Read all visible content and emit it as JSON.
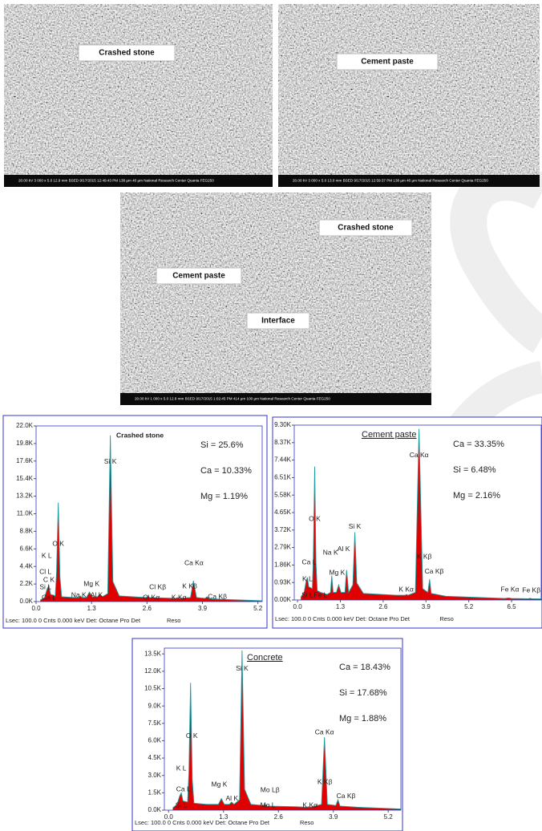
{
  "images": [
    {
      "labels": [
        "Crashed stone"
      ],
      "info": "20.00 kV  3 000 x  5.0  12.9 mm  BSED  9/17/2015 12:49:43 PM  138 µm  40 µm  National Research Center Quanta FEG250"
    },
    {
      "labels": [
        "Cement paste"
      ],
      "info": "20.00 kV  3 000 x  5.0  13.0 mm  BSED  9/17/2015 12:59:37 PM  138 µm  40 µm  National Research Center Quanta FEG250"
    },
    {
      "labels": [
        "Crashed stone",
        "Cement paste",
        "Interface"
      ],
      "info": "20.00 kV  1 000 x  5.0  12.8 mm  BSED  9/17/2015 1:02:45 PM  414 µm  100 µm  National Research Center Quanta FEG250"
    }
  ],
  "chart_data": [
    {
      "type": "area",
      "title": "Crashed stone",
      "color": "#e00000",
      "line_color": "#1f9aa0",
      "x": [
        0.1,
        0.2,
        0.26,
        0.3,
        0.34,
        0.45,
        0.48,
        0.52,
        0.56,
        0.6,
        0.9,
        1.0,
        1.04,
        1.08,
        1.18,
        1.25,
        1.32,
        1.44,
        1.49,
        1.55,
        1.68,
        1.74,
        1.8,
        1.95,
        2.58,
        2.62,
        2.66,
        3.0,
        3.27,
        3.31,
        3.35,
        3.62,
        3.69,
        3.76,
        3.96,
        4.01,
        4.06,
        4.5,
        5.3
      ],
      "values": [
        200,
        500,
        1600,
        2000,
        900,
        700,
        3500,
        12400,
        3000,
        600,
        500,
        500,
        700,
        500,
        500,
        1200,
        600,
        600,
        900,
        600,
        1000,
        20800,
        2500,
        700,
        500,
        700,
        500,
        450,
        400,
        500,
        400,
        500,
        2600,
        500,
        400,
        600,
        350,
        250,
        100
      ],
      "xlim": [
        0,
        5.3
      ],
      "xticks": [
        {
          "value": 0,
          "label": "0.0"
        },
        1.3,
        2.6,
        3.9,
        5.2
      ],
      "ylim": [
        0,
        22000
      ],
      "yticks": [
        {
          "value": 0,
          "label": "0.0K"
        },
        {
          "value": 2200,
          "label": "2.2K"
        },
        {
          "value": 4400,
          "label": "4.4K"
        },
        {
          "value": 6600,
          "label": "6.6K"
        },
        {
          "value": 8800,
          "label": "8.8K"
        },
        {
          "value": 11000,
          "label": "11.0K"
        },
        {
          "value": 13200,
          "label": "13.2K"
        },
        {
          "value": 15400,
          "label": "15.4K"
        },
        {
          "value": 17600,
          "label": "17.6K"
        },
        {
          "value": 19800,
          "label": "19.8K"
        },
        {
          "value": 22000,
          "label": "22.0K"
        }
      ],
      "annotations": [
        {
          "text": "Si K",
          "x": 1.74,
          "y": 17500
        },
        {
          "text": "O K",
          "x": 0.52,
          "y": 7200
        },
        {
          "text": "K L",
          "x": 0.25,
          "y": 5700
        },
        {
          "text": "Cl L",
          "x": 0.22,
          "y": 3700
        },
        {
          "text": "C K",
          "x": 0.3,
          "y": 2700
        },
        {
          "text": "Si L",
          "x": 0.22,
          "y": 1800
        },
        {
          "text": "Ca L",
          "x": 0.3,
          "y": 500
        },
        {
          "text": "Na K",
          "x": 1.0,
          "y": 800
        },
        {
          "text": "Al K",
          "x": 1.42,
          "y": 800
        },
        {
          "text": "Mg K",
          "x": 1.3,
          "y": 2200
        },
        {
          "text": "Cl Kβ",
          "x": 2.85,
          "y": 1800
        },
        {
          "text": "Cl Kα",
          "x": 2.7,
          "y": 500
        },
        {
          "text": "K Kα",
          "x": 3.35,
          "y": 500
        },
        {
          "text": "Ca Kα",
          "x": 3.7,
          "y": 4800
        },
        {
          "text": "K Kβ",
          "x": 3.6,
          "y": 1900
        },
        {
          "text": "Ca Kβ",
          "x": 4.25,
          "y": 600
        }
      ],
      "composition": [
        "Si = 25.6%",
        "Ca = 10.33%",
        "Mg = 1.19%"
      ],
      "footer": [
        "Lsec: 100.0 0 Cnts  0.000 keV Det: Octane Pro Det",
        "Reso"
      ]
    },
    {
      "type": "area",
      "title": "Cement paste",
      "color": "#e00000",
      "line_color": "#1f9aa0",
      "x": [
        0.1,
        0.2,
        0.26,
        0.3,
        0.34,
        0.45,
        0.48,
        0.52,
        0.56,
        0.6,
        0.7,
        0.9,
        1.0,
        1.04,
        1.08,
        1.18,
        1.25,
        1.32,
        1.44,
        1.49,
        1.55,
        1.68,
        1.74,
        1.8,
        2.0,
        3.0,
        3.27,
        3.31,
        3.35,
        3.58,
        3.69,
        3.8,
        3.96,
        4.01,
        4.06,
        4.5,
        6.3,
        6.4,
        6.5,
        7.0,
        7.06,
        7.12,
        7.4
      ],
      "values": [
        150,
        400,
        1000,
        1200,
        700,
        600,
        2200,
        7100,
        2000,
        500,
        400,
        300,
        400,
        1300,
        400,
        400,
        800,
        400,
        400,
        1600,
        400,
        800,
        3600,
        900,
        350,
        250,
        250,
        300,
        250,
        400,
        9100,
        600,
        400,
        1100,
        350,
        200,
        80,
        110,
        80,
        70,
        90,
        70,
        60
      ],
      "xlim": [
        -0.1,
        7.4
      ],
      "xticks": [
        {
          "value": 0,
          "label": "0.0"
        },
        1.3,
        2.6,
        3.9,
        5.2,
        6.5
      ],
      "ylim": [
        0,
        9300
      ],
      "yticks": [
        {
          "value": 0,
          "label": "0.00K"
        },
        {
          "value": 930,
          "label": "0.93K"
        },
        {
          "value": 1860,
          "label": "1.86K"
        },
        {
          "value": 2790,
          "label": "2.79K"
        },
        {
          "value": 3720,
          "label": "3.72K"
        },
        {
          "value": 4650,
          "label": "4.65K"
        },
        {
          "value": 5580,
          "label": "5.58K"
        },
        {
          "value": 6510,
          "label": "6.51K"
        },
        {
          "value": 7440,
          "label": "7.44K"
        },
        {
          "value": 8370,
          "label": "8.37K"
        },
        {
          "value": 9300,
          "label": "9.30K"
        }
      ],
      "annotations": [
        {
          "text": "Ca Kα",
          "x": 3.69,
          "y": 7700
        },
        {
          "text": "O K",
          "x": 0.52,
          "y": 4300
        },
        {
          "text": "Ca L",
          "x": 0.35,
          "y": 2000
        },
        {
          "text": "K L",
          "x": 0.3,
          "y": 1100
        },
        {
          "text": "Si L",
          "x": 0.3,
          "y": 250
        },
        {
          "text": "Fe L",
          "x": 0.7,
          "y": 250
        },
        {
          "text": "Na K",
          "x": 1.0,
          "y": 2500
        },
        {
          "text": "Al K",
          "x": 1.4,
          "y": 2700
        },
        {
          "text": "Mg K",
          "x": 1.2,
          "y": 1450
        },
        {
          "text": "Si K",
          "x": 1.74,
          "y": 3900
        },
        {
          "text": "K Kα",
          "x": 3.3,
          "y": 550
        },
        {
          "text": "K Kβ",
          "x": 3.85,
          "y": 2300
        },
        {
          "text": "Ca Kβ",
          "x": 4.15,
          "y": 1500
        },
        {
          "text": "Fe Kα",
          "x": 6.45,
          "y": 550
        },
        {
          "text": "Fe Kβ",
          "x": 7.1,
          "y": 500
        }
      ],
      "composition": [
        "Ca = 33.35%",
        "Si = 6.48%",
        "Mg = 2.16%"
      ],
      "footer": [
        "Lsec: 100.0 0 Cnts  0.000 keV Det: Octane Pro Det",
        "Reso"
      ]
    },
    {
      "type": "area",
      "title": "Concrete",
      "color": "#e00000",
      "line_color": "#1f9aa0",
      "x": [
        0.1,
        0.2,
        0.26,
        0.3,
        0.34,
        0.45,
        0.48,
        0.52,
        0.56,
        0.6,
        0.9,
        1.18,
        1.25,
        1.32,
        1.44,
        1.49,
        1.55,
        1.68,
        1.74,
        1.8,
        1.95,
        2.25,
        2.29,
        2.33,
        3.0,
        3.27,
        3.31,
        3.35,
        3.62,
        3.69,
        3.76,
        3.96,
        4.01,
        4.06,
        4.5,
        5.5
      ],
      "values": [
        200,
        500,
        1200,
        1500,
        800,
        700,
        3200,
        11000,
        2600,
        600,
        500,
        500,
        1000,
        500,
        500,
        700,
        500,
        900,
        13800,
        1800,
        500,
        400,
        500,
        350,
        300,
        250,
        300,
        250,
        500,
        6300,
        500,
        400,
        900,
        350,
        250,
        100
      ],
      "xlim": [
        -0.1,
        5.5
      ],
      "xticks": [
        {
          "value": 0,
          "label": "0.0"
        },
        1.3,
        2.6,
        3.9,
        5.2
      ],
      "ylim": [
        0,
        14000
      ],
      "yticks": [
        {
          "value": 0,
          "label": "0.0K"
        },
        {
          "value": 1500,
          "label": "1.5K"
        },
        {
          "value": 3000,
          "label": "3.0K"
        },
        {
          "value": 4500,
          "label": "4.5K"
        },
        {
          "value": 6000,
          "label": "6.0K"
        },
        {
          "value": 7500,
          "label": "7.5K"
        },
        {
          "value": 9000,
          "label": "9.0K"
        },
        {
          "value": 10500,
          "label": "10.5K"
        },
        {
          "value": 12000,
          "label": "12.0K"
        },
        {
          "value": 13500,
          "label": "13.5K"
        }
      ],
      "annotations": [
        {
          "text": "Si K",
          "x": 1.74,
          "y": 12200
        },
        {
          "text": "O K",
          "x": 0.55,
          "y": 6400
        },
        {
          "text": "K L",
          "x": 0.3,
          "y": 3600
        },
        {
          "text": "Ca L",
          "x": 0.35,
          "y": 1800
        },
        {
          "text": "Si L",
          "x": 0.3,
          "y": 400
        },
        {
          "text": "Mg K",
          "x": 1.2,
          "y": 2200
        },
        {
          "text": "Al K",
          "x": 1.5,
          "y": 1000
        },
        {
          "text": "Mo Lβ",
          "x": 2.4,
          "y": 1700
        },
        {
          "text": "Mo L",
          "x": 2.35,
          "y": 400
        },
        {
          "text": "K Kα",
          "x": 3.35,
          "y": 400
        },
        {
          "text": "Ca Kα",
          "x": 3.69,
          "y": 6700
        },
        {
          "text": "K Kβ",
          "x": 3.7,
          "y": 2400
        },
        {
          "text": "Ca Kβ",
          "x": 4.2,
          "y": 1200
        }
      ],
      "composition": [
        "Ca = 18.43%",
        "Si = 17.68%",
        "Mg = 1.88%"
      ],
      "footer": [
        "Lsec: 100.0 0 Cnts  0.000 keV Det: Octane Pro Det",
        "Reso"
      ]
    }
  ]
}
